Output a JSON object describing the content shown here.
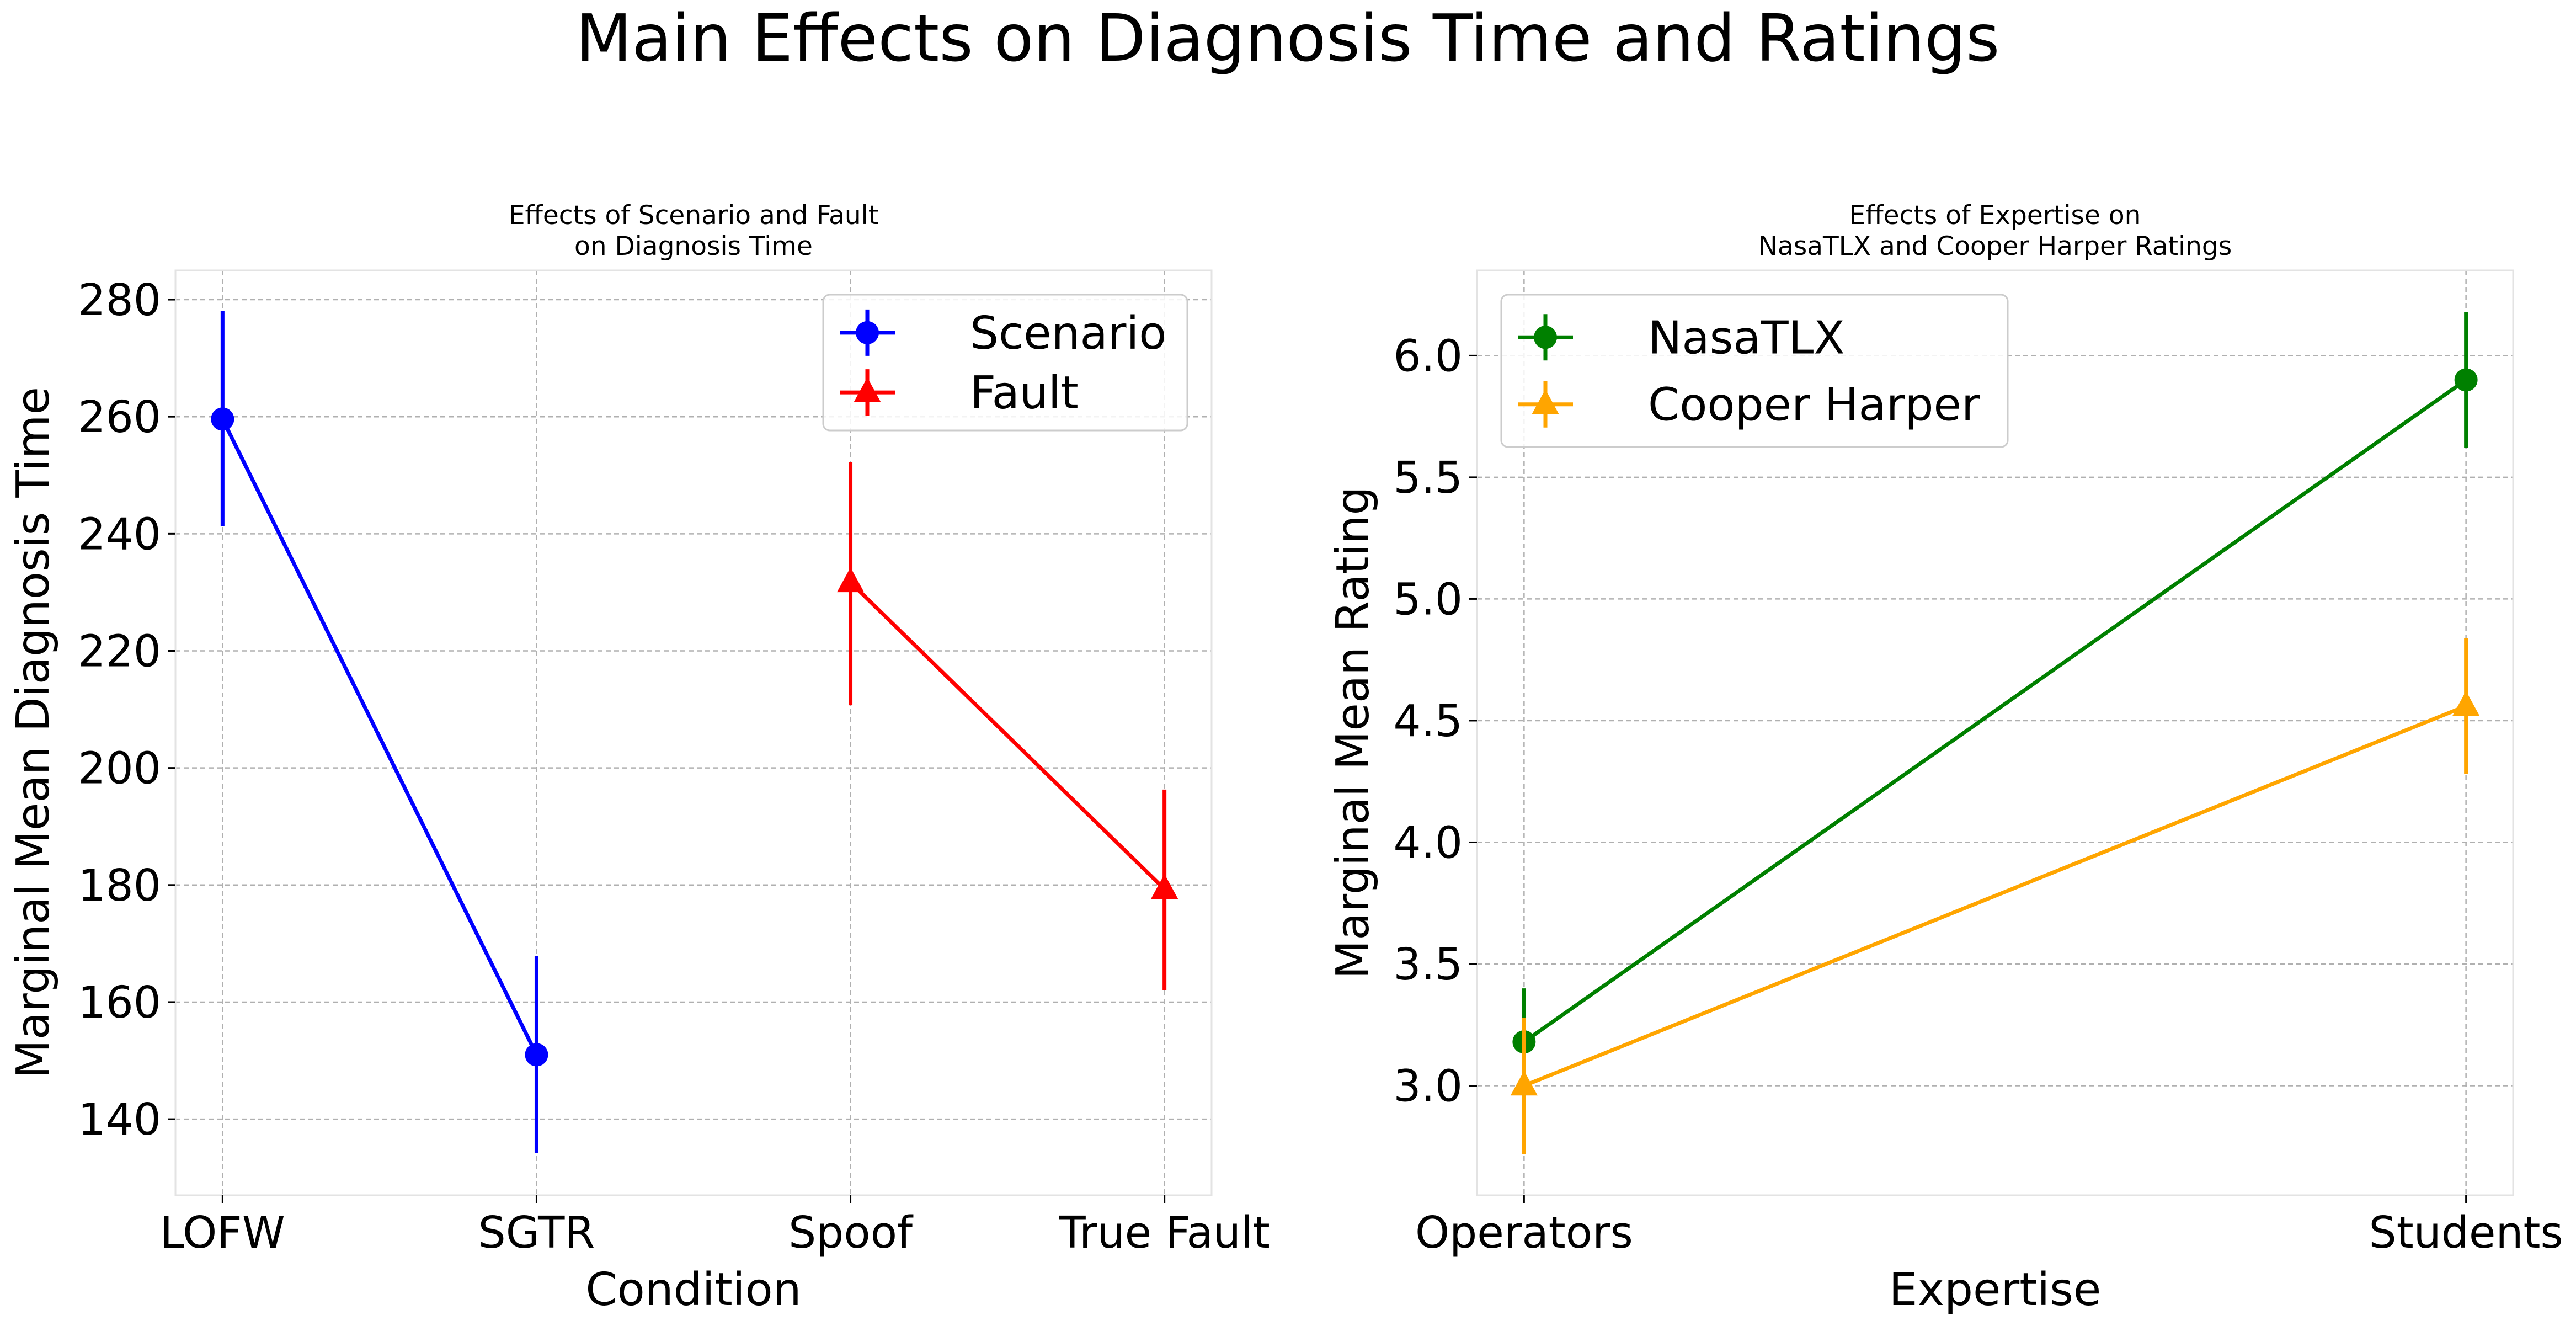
{
  "figure": {
    "title": "Main Effects on Diagnosis Time and Ratings"
  },
  "chart_data": [
    {
      "type": "line",
      "title": "Effects of Scenario and Fault\non Diagnosis Time",
      "xlabel": "Condition",
      "ylabel": "Marginal Mean Diagnosis Time",
      "categories": [
        "LOFW",
        "SGTR",
        "Spoof",
        "True Fault"
      ],
      "ylim": [
        127,
        285
      ],
      "yticks": [
        140,
        160,
        180,
        200,
        220,
        240,
        260,
        280
      ],
      "grid": true,
      "legend_placement": "top-right",
      "series": [
        {
          "name": "Scenario",
          "color": "#0000ff",
          "marker": "circle",
          "points": [
            {
              "x": "LOFW",
              "y": 259.6,
              "err_low": 241.3,
              "err_high": 278.1
            },
            {
              "x": "SGTR",
              "y": 151.0,
              "err_low": 134.2,
              "err_high": 167.9
            }
          ]
        },
        {
          "name": "Fault",
          "color": "#ff0000",
          "marker": "triangle",
          "points": [
            {
              "x": "Spoof",
              "y": 231.7,
              "err_low": 210.7,
              "err_high": 252.2
            },
            {
              "x": "True Fault",
              "y": 179.3,
              "err_low": 162.0,
              "err_high": 196.3
            }
          ]
        }
      ]
    },
    {
      "type": "line",
      "title": "Effects of Expertise on\nNasaTLX and Cooper Harper Ratings",
      "xlabel": "Expertise",
      "ylabel": "Marginal Mean Rating",
      "categories": [
        "Operators",
        "Students"
      ],
      "ylim": [
        2.55,
        6.35
      ],
      "yticks": [
        3.0,
        3.5,
        4.0,
        4.5,
        5.0,
        5.5,
        6.0
      ],
      "grid": true,
      "legend_placement": "top-left",
      "series": [
        {
          "name": "NasaTLX",
          "color": "#008000",
          "marker": "circle",
          "points": [
            {
              "x": "Operators",
              "y": 3.18,
              "err_low": 2.97,
              "err_high": 3.4
            },
            {
              "x": "Students",
              "y": 5.9,
              "err_low": 5.62,
              "err_high": 6.18
            }
          ]
        },
        {
          "name": "Cooper Harper",
          "color": "#ffa500",
          "marker": "triangle",
          "points": [
            {
              "x": "Operators",
              "y": 3.0,
              "err_low": 2.72,
              "err_high": 3.28
            },
            {
              "x": "Students",
              "y": 4.56,
              "err_low": 4.28,
              "err_high": 4.84
            }
          ]
        }
      ]
    }
  ]
}
